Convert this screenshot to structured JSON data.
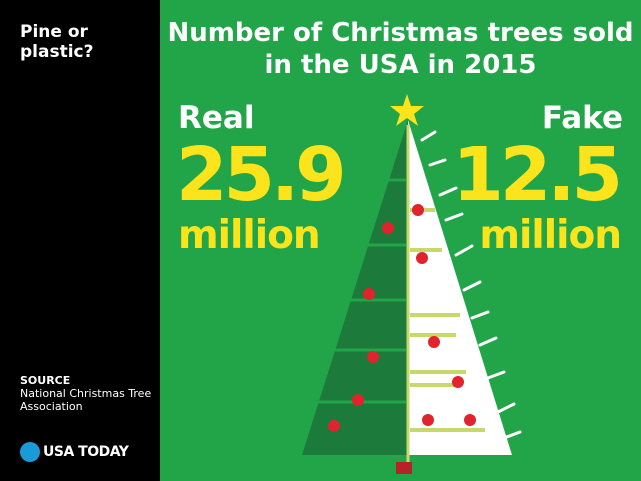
{
  "sidebar": {
    "title": "Pine or plastic?",
    "source_label": "SOURCE",
    "source_text": "National Christmas Tree Association",
    "logo_text": "USA TODAY"
  },
  "colors": {
    "background": "#22a548",
    "sidebar": "#000000",
    "accent_yellow": "#fbe41c",
    "real_tree": "#1c7a3a",
    "fake_tree": "#ffffff",
    "ornament": "#e0232c",
    "logo_blue": "#1a9ad6"
  },
  "chart_data": {
    "type": "bar",
    "title": "Number of Christmas trees sold in the USA in 2015",
    "categories": [
      "Real",
      "Fake"
    ],
    "values": [
      25.9,
      12.5
    ],
    "value_labels": [
      "25.9",
      "12.5"
    ],
    "unit": "million",
    "icons": [
      "christmas-tree-icon",
      "star-icon"
    ]
  }
}
